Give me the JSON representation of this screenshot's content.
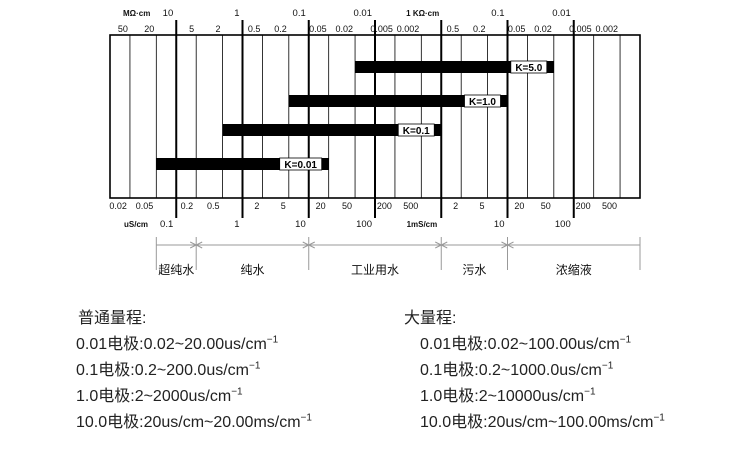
{
  "chart_data": {
    "type": "range-scale",
    "top_unit_left": "MΩ·cm",
    "top_unit_right": "1 KΩ·cm",
    "bottom_unit_left": "uS/cm",
    "bottom_unit_right": "1mS/cm",
    "major_top": [
      {
        "x_us": 0.1,
        "label": "10"
      },
      {
        "x_us": 1,
        "label": "1"
      },
      {
        "x_us": 10,
        "label": "0.1"
      },
      {
        "x_us": 100,
        "label": "0.01"
      },
      {
        "x_us": 1000,
        "label": ""
      },
      {
        "x_us": 10000,
        "label": "0.1"
      },
      {
        "x_us": 100000,
        "label": "0.01"
      }
    ],
    "minor_top": [
      {
        "x_us": 0.02,
        "label": "50"
      },
      {
        "x_us": 0.05,
        "label": "20"
      },
      {
        "x_us": 0.2,
        "label": "5"
      },
      {
        "x_us": 0.5,
        "label": "2"
      },
      {
        "x_us": 2,
        "label": "0.5"
      },
      {
        "x_us": 5,
        "label": "0.2"
      },
      {
        "x_us": 20,
        "label": "0.05"
      },
      {
        "x_us": 50,
        "label": "0.02"
      },
      {
        "x_us": 200,
        "label": "0.005"
      },
      {
        "x_us": 500,
        "label": "0.002"
      },
      {
        "x_us": 2000,
        "label": "0.5"
      },
      {
        "x_us": 5000,
        "label": "0.2"
      },
      {
        "x_us": 20000,
        "label": "0.05"
      },
      {
        "x_us": 50000,
        "label": "0.02"
      },
      {
        "x_us": 200000,
        "label": "0.005"
      },
      {
        "x_us": 500000,
        "label": "0.002"
      }
    ],
    "major_bottom": [
      {
        "x_us": 0.1,
        "label": "0.1"
      },
      {
        "x_us": 1,
        "label": "1"
      },
      {
        "x_us": 10,
        "label": "10"
      },
      {
        "x_us": 100,
        "label": "100"
      },
      {
        "x_us": 10000,
        "label": "10"
      },
      {
        "x_us": 100000,
        "label": "100"
      }
    ],
    "minor_bottom": [
      {
        "x_us": 0.02,
        "label": "0.02"
      },
      {
        "x_us": 0.05,
        "label": "0.05"
      },
      {
        "x_us": 0.2,
        "label": "0.2"
      },
      {
        "x_us": 0.5,
        "label": "0.5"
      },
      {
        "x_us": 2,
        "label": "2"
      },
      {
        "x_us": 5,
        "label": "5"
      },
      {
        "x_us": 20,
        "label": "20"
      },
      {
        "x_us": 50,
        "label": "50"
      },
      {
        "x_us": 200,
        "label": "200"
      },
      {
        "x_us": 500,
        "label": "500"
      },
      {
        "x_us": 2000,
        "label": "2"
      },
      {
        "x_us": 5000,
        "label": "5"
      },
      {
        "x_us": 20000,
        "label": "20"
      },
      {
        "x_us": 50000,
        "label": "50"
      },
      {
        "x_us": 200000,
        "label": "200"
      },
      {
        "x_us": 500000,
        "label": "500"
      }
    ],
    "bars": [
      {
        "label": "K=5.0",
        "from_us": 50,
        "to_us": 50000
      },
      {
        "label": "K=1.0",
        "from_us": 5,
        "to_us": 10000
      },
      {
        "label": "K=0.1",
        "from_us": 0.5,
        "to_us": 1000
      },
      {
        "label": "K=0.01",
        "from_us": 0.05,
        "to_us": 20
      }
    ],
    "water_types": [
      {
        "label": "超纯水",
        "from_us": 0.05,
        "to_us": 0.2
      },
      {
        "label": "纯水",
        "from_us": 0.2,
        "to_us": 10
      },
      {
        "label": "工业用水",
        "from_us": 10,
        "to_us": 1000
      },
      {
        "label": "污水",
        "from_us": 1000,
        "to_us": 10000
      },
      {
        "label": "浓缩液",
        "from_us": 10000,
        "to_us": 1000000
      }
    ]
  },
  "normal_range": {
    "title": "普通量程:",
    "lines": [
      {
        "text": "0.01电极:0.02~20.00us/cm",
        "sup": "−1"
      },
      {
        "text": "0.1电极:0.2~200.0us/cm",
        "sup": "−1"
      },
      {
        "text": "1.0电极:2~2000us/cm",
        "sup": "−1"
      },
      {
        "text": "10.0电极:20us/cm~20.00ms/cm",
        "sup": "−1"
      }
    ]
  },
  "large_range": {
    "title": "大量程:",
    "lines": [
      {
        "text": "0.01电极:0.02~100.00us/cm",
        "sup": "−1"
      },
      {
        "text": "0.1电极:0.2~1000.0us/cm",
        "sup": "−1"
      },
      {
        "text": "1.0电极:2~10000us/cm",
        "sup": "−1"
      },
      {
        "text": "10.0电极:20us/cm~100.00ms/cm",
        "sup": "−1"
      }
    ]
  }
}
